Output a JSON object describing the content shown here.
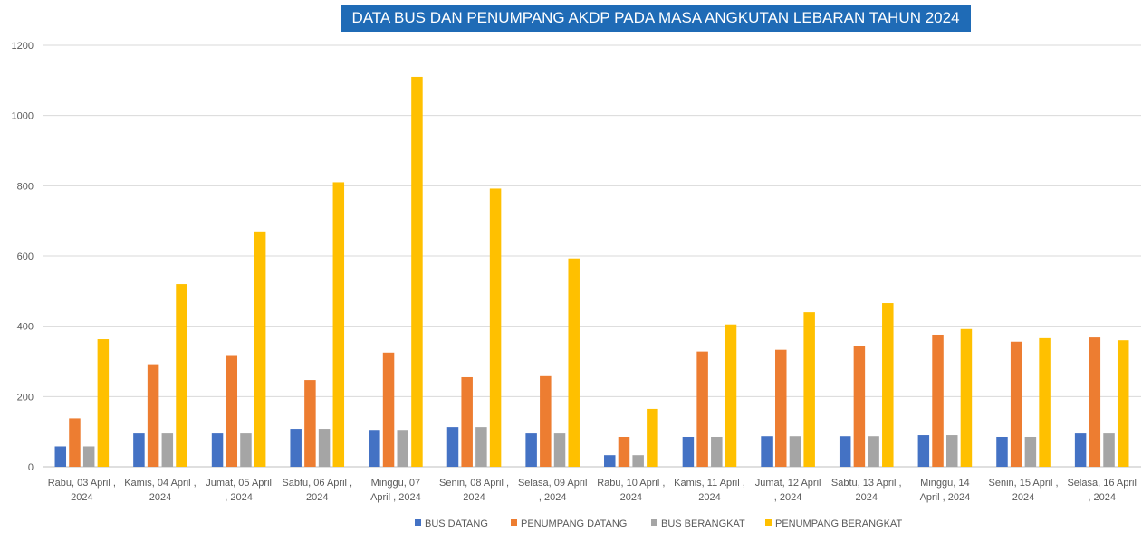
{
  "chart_data": {
    "type": "bar",
    "title": "DATA BUS DAN PENUMPANG AKDP PADA MASA ANGKUTAN LEBARAN TAHUN 2024",
    "xlabel": "",
    "ylabel": "",
    "ylim": [
      0,
      1200
    ],
    "yticks": [
      0,
      200,
      400,
      600,
      800,
      1000,
      1200
    ],
    "grid": true,
    "legend_position": "bottom",
    "categories": [
      [
        "Rabu, 03 April ,",
        "2024"
      ],
      [
        "Kamis, 04 April ,",
        "2024"
      ],
      [
        "Jumat, 05 April",
        ", 2024"
      ],
      [
        "Sabtu, 06 April ,",
        "2024"
      ],
      [
        "Minggu, 07",
        "April , 2024"
      ],
      [
        "Senin, 08 April ,",
        "2024"
      ],
      [
        "Selasa, 09 April",
        ", 2024"
      ],
      [
        "Rabu, 10 April ,",
        "2024"
      ],
      [
        "Kamis, 11 April ,",
        "2024"
      ],
      [
        "Jumat, 12 April",
        ", 2024"
      ],
      [
        "Sabtu, 13 April ,",
        "2024"
      ],
      [
        "Minggu, 14",
        "April , 2024"
      ],
      [
        "Senin, 15 April ,",
        "2024"
      ],
      [
        "Selasa, 16 April",
        ", 2024"
      ]
    ],
    "series": [
      {
        "name": "BUS DATANG",
        "color": "#4472c4",
        "values": [
          58,
          95,
          95,
          108,
          105,
          113,
          95,
          33,
          85,
          87,
          87,
          90,
          85,
          95
        ]
      },
      {
        "name": "PENUMPANG DATANG",
        "color": "#ed7d31",
        "values": [
          138,
          292,
          318,
          247,
          325,
          255,
          258,
          85,
          328,
          333,
          343,
          376,
          356,
          368
        ]
      },
      {
        "name": "BUS BERANGKAT",
        "color": "#a5a5a5",
        "values": [
          58,
          95,
          95,
          108,
          105,
          113,
          95,
          33,
          85,
          87,
          87,
          90,
          85,
          95
        ]
      },
      {
        "name": "PENUMPANG BERANGKAT",
        "color": "#ffc000",
        "values": [
          363,
          520,
          670,
          810,
          1110,
          792,
          593,
          165,
          405,
          440,
          466,
          392,
          366,
          360
        ]
      }
    ]
  }
}
